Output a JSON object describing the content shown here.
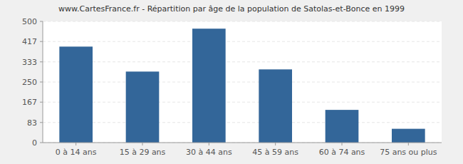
{
  "chart_data": {
    "type": "bar",
    "title": "www.CartesFrance.fr - Répartition par âge de la population de Satolas-et-Bonce en 1999",
    "categories": [
      "0 à 14 ans",
      "15 à 29 ans",
      "30 à 44 ans",
      "45 à 59 ans",
      "60 à 74 ans",
      "75 ans ou plus"
    ],
    "values": [
      396,
      293,
      470,
      302,
      135,
      57
    ],
    "color": "#336699",
    "ylim": [
      0,
      500
    ],
    "yticks": [
      0,
      83,
      167,
      250,
      333,
      417,
      500
    ],
    "grid": true
  }
}
